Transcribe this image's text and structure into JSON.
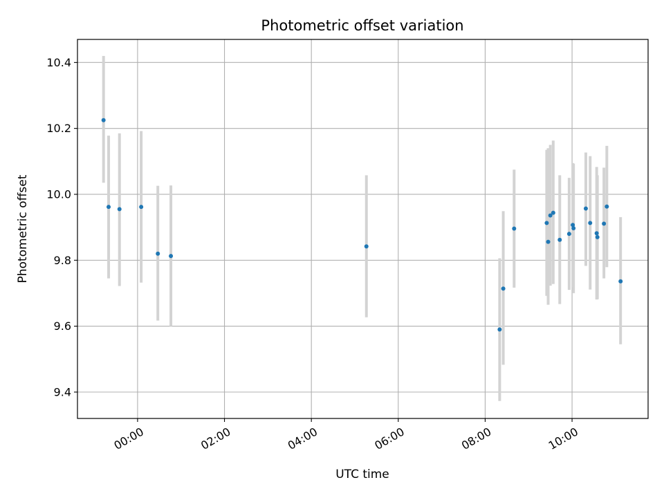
{
  "chart_data": {
    "type": "scatter",
    "title": "Photometric offset variation",
    "xlabel": "UTC time",
    "ylabel": "Photometric offset",
    "x_axis_type": "time",
    "xlim": [
      "2000-01-01T22:37",
      "2000-01-02T11:45"
    ],
    "ylim": [
      9.32,
      10.47
    ],
    "grid": true,
    "colors": {
      "points": "#1f77b4",
      "errorbars": "#d3d3d3",
      "grid": "#b0b0b0"
    },
    "x_ticks": [
      {
        "t": "2000-01-02T00:00",
        "label": "00:00"
      },
      {
        "t": "2000-01-02T02:00",
        "label": "02:00"
      },
      {
        "t": "2000-01-02T04:00",
        "label": "04:00"
      },
      {
        "t": "2000-01-02T06:00",
        "label": "06:00"
      },
      {
        "t": "2000-01-02T08:00",
        "label": "08:00"
      },
      {
        "t": "2000-01-02T10:00",
        "label": "10:00"
      }
    ],
    "y_ticks": [
      {
        "v": 9.4,
        "label": "9.4"
      },
      {
        "v": 9.6,
        "label": "9.6"
      },
      {
        "v": 9.8,
        "label": "9.8"
      },
      {
        "v": 10.0,
        "label": "10.0"
      },
      {
        "v": 10.2,
        "label": "10.2"
      },
      {
        "v": 10.4,
        "label": "10.4"
      }
    ],
    "points": [
      {
        "t": "2000-01-01T23:13",
        "y": 10.225,
        "ylo": 10.035,
        "yhi": 10.42
      },
      {
        "t": "2000-01-01T23:20",
        "y": 9.962,
        "ylo": 9.745,
        "yhi": 10.178
      },
      {
        "t": "2000-01-01T23:35",
        "y": 9.955,
        "ylo": 9.722,
        "yhi": 10.185
      },
      {
        "t": "2000-01-02T00:05",
        "y": 9.962,
        "ylo": 9.732,
        "yhi": 10.192
      },
      {
        "t": "2000-01-02T00:28",
        "y": 9.82,
        "ylo": 9.617,
        "yhi": 10.026
      },
      {
        "t": "2000-01-02T00:46",
        "y": 9.813,
        "ylo": 9.6,
        "yhi": 10.027
      },
      {
        "t": "2000-01-02T05:16",
        "y": 9.842,
        "ylo": 9.627,
        "yhi": 10.058
      },
      {
        "t": "2000-01-02T08:20",
        "y": 9.59,
        "ylo": 9.373,
        "yhi": 9.806
      },
      {
        "t": "2000-01-02T08:25",
        "y": 9.714,
        "ylo": 9.483,
        "yhi": 9.949
      },
      {
        "t": "2000-01-02T08:40",
        "y": 9.896,
        "ylo": 9.717,
        "yhi": 10.075
      },
      {
        "t": "2000-01-02T09:25",
        "y": 9.913,
        "ylo": 9.692,
        "yhi": 10.135
      },
      {
        "t": "2000-01-02T09:27",
        "y": 9.856,
        "ylo": 9.665,
        "yhi": 10.14
      },
      {
        "t": "2000-01-02T09:30",
        "y": 9.936,
        "ylo": 9.723,
        "yhi": 10.15
      },
      {
        "t": "2000-01-02T09:34",
        "y": 9.944,
        "ylo": 9.728,
        "yhi": 10.163
      },
      {
        "t": "2000-01-02T09:43",
        "y": 9.862,
        "ylo": 9.667,
        "yhi": 10.058
      },
      {
        "t": "2000-01-02T09:56",
        "y": 9.88,
        "ylo": 9.71,
        "yhi": 10.05
      },
      {
        "t": "2000-01-02T10:01",
        "y": 9.907,
        "ylo": 9.718,
        "yhi": 10.095
      },
      {
        "t": "2000-01-02T10:02",
        "y": 9.897,
        "ylo": 9.7,
        "yhi": 10.093
      },
      {
        "t": "2000-01-02T10:19",
        "y": 9.957,
        "ylo": 9.783,
        "yhi": 10.127
      },
      {
        "t": "2000-01-02T10:25",
        "y": 9.913,
        "ylo": 9.711,
        "yhi": 10.116
      },
      {
        "t": "2000-01-02T10:34",
        "y": 9.882,
        "ylo": 9.681,
        "yhi": 10.083
      },
      {
        "t": "2000-01-02T10:35",
        "y": 9.87,
        "ylo": 9.682,
        "yhi": 10.058
      },
      {
        "t": "2000-01-02T10:44",
        "y": 9.911,
        "ylo": 9.745,
        "yhi": 10.081
      },
      {
        "t": "2000-01-02T10:48",
        "y": 9.963,
        "ylo": 9.779,
        "yhi": 10.147
      },
      {
        "t": "2000-01-02T11:07",
        "y": 9.736,
        "ylo": 9.545,
        "yhi": 9.931
      }
    ]
  }
}
